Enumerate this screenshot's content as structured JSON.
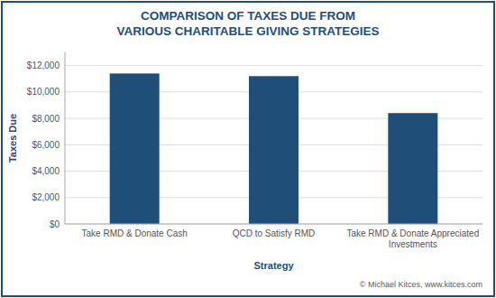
{
  "chart_data": {
    "type": "bar",
    "title": "COMPARISON OF TAXES DUE FROM\nVARIOUS CHARITABLE GIVING STRATEGIES",
    "categories": [
      "Take RMD & Donate Cash",
      "QCD to Satisfy RMD",
      "Take RMD & Donate Appreciated\nInvestments"
    ],
    "values": [
      11400,
      11200,
      8400
    ],
    "color": "#1F4E79",
    "x_label": "Strategy",
    "y_label": "Taxes Due",
    "ylim": [
      0,
      13000
    ],
    "yticks": [
      {
        "value": 0,
        "label": "$0"
      },
      {
        "value": 2000,
        "label": "$2,000"
      },
      {
        "value": 4000,
        "label": "$4,000"
      },
      {
        "value": 6000,
        "label": "$6,000"
      },
      {
        "value": 8000,
        "label": "$8,000"
      },
      {
        "value": 10000,
        "label": "$10,000"
      },
      {
        "value": 12000,
        "label": "$12,000"
      }
    ],
    "grid": true,
    "annotations": [
      "© Michael Kitces, www.kitces.com"
    ]
  }
}
